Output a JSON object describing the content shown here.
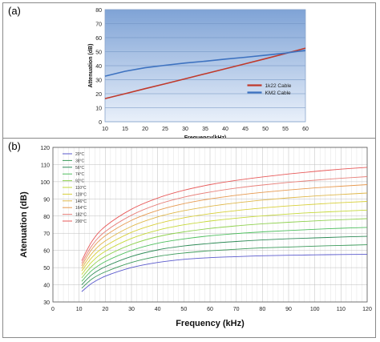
{
  "charts": [
    {
      "panel_label": "(a)",
      "chart_data": {
        "type": "line",
        "xlabel": "Frequency(kHz)",
        "ylabel": "Attenuation (dB)",
        "xlim": [
          10,
          60
        ],
        "ylim": [
          0,
          80
        ],
        "x_ticks": [
          "10",
          "15",
          "20",
          "25",
          "30",
          "35",
          "40",
          "45",
          "50",
          "55",
          "60"
        ],
        "y_ticks": [
          "0",
          "10",
          "20",
          "30",
          "40",
          "50",
          "60",
          "70",
          "80"
        ],
        "grid": "horizontal",
        "legend_position": "center-right",
        "series": [
          {
            "name": "1k22 Cable",
            "color": "#c0392b",
            "x": [
              10,
              15,
              20,
              25,
              30,
              35,
              40,
              45,
              50,
              55,
              60
            ],
            "y": [
              16.5,
              20.0,
              23.6,
              27.1,
              30.6,
              34.2,
              37.8,
              41.4,
              45.0,
              48.6,
              52.5
            ]
          },
          {
            "name": "KM2 Cable",
            "color": "#3d72c0",
            "x": [
              10,
              15,
              20,
              25,
              30,
              35,
              40,
              45,
              50,
              55,
              60
            ],
            "y": [
              32.5,
              36.0,
              38.5,
              40.3,
              41.9,
              43.2,
              44.7,
              46.0,
              47.5,
              49.0,
              51.0
            ]
          }
        ]
      }
    },
    {
      "panel_label": "(b)",
      "chart_data": {
        "type": "line",
        "xlabel": "Frequency (kHz)",
        "ylabel": "Atenuation (dB)",
        "xlim": [
          0,
          120
        ],
        "ylim": [
          30,
          120
        ],
        "x_ticks": [
          "0",
          "10",
          "20",
          "30",
          "40",
          "50",
          "60",
          "70",
          "80",
          "90",
          "100",
          "110",
          "120"
        ],
        "y_ticks": [
          "30",
          "40",
          "50",
          "60",
          "70",
          "80",
          "90",
          "100",
          "110",
          "120"
        ],
        "grid": "both",
        "legend_position": "top-left",
        "x": [
          11,
          15,
          20,
          30,
          40,
          50,
          60,
          70,
          80,
          90,
          100,
          110,
          120
        ],
        "series": [
          {
            "name": "20°C",
            "color": "#5a5acd",
            "y": [
              36,
              41,
              45,
              50,
              53,
              54.8,
              55.8,
              56.4,
              56.9,
              57.2,
              57.4,
              57.6,
              57.7
            ]
          },
          {
            "name": "38°C",
            "color": "#3b9a5a",
            "y": [
              38,
              43.5,
              47.5,
              53,
              56.5,
              58.5,
              59.8,
              60.7,
              61.5,
              62.0,
              62.5,
              62.9,
              63.3
            ]
          },
          {
            "name": "56°C",
            "color": "#2e8b57",
            "y": [
              40,
              46,
              50.5,
              56.5,
              60.3,
              62.6,
              64.1,
              65.2,
              66.1,
              66.8,
              67.3,
              67.8,
              68.2
            ]
          },
          {
            "name": "74°C",
            "color": "#4fbf5f",
            "y": [
              42,
              48.5,
              53.5,
              60,
              64.2,
              66.7,
              68.5,
              69.8,
              70.8,
              71.6,
              72.3,
              72.9,
              73.4
            ]
          },
          {
            "name": "92°C",
            "color": "#8fd14f",
            "y": [
              44,
              51,
              56.5,
              63.5,
              68,
              70.8,
              72.8,
              74.3,
              75.5,
              76.4,
              77.2,
              77.9,
              78.5
            ]
          },
          {
            "name": "110°C",
            "color": "#c6d93a",
            "y": [
              46,
              53.5,
              59.5,
              67,
              71.8,
              74.9,
              77.1,
              78.8,
              80.1,
              81.2,
              82.1,
              82.8,
              83.5
            ]
          },
          {
            "name": "128°C",
            "color": "#d8d03a",
            "y": [
              48,
              56,
              62.5,
              70.5,
              75.6,
              79,
              81.4,
              83.2,
              84.7,
              85.9,
              86.9,
              87.8,
              88.5
            ]
          },
          {
            "name": "146°C",
            "color": "#e0b84a",
            "y": [
              49.5,
              58.5,
              65.5,
              74,
              79.5,
              83.1,
              85.7,
              87.7,
              89.3,
              90.6,
              91.7,
              92.6,
              93.4
            ]
          },
          {
            "name": "164°C",
            "color": "#e79a50",
            "y": [
              51,
              61,
              68.5,
              77.5,
              83.3,
              87.2,
              90,
              92.1,
              93.8,
              95.2,
              96.4,
              97.4,
              98.3
            ]
          },
          {
            "name": "182°C",
            "color": "#e8807a",
            "y": [
              52.5,
              63,
              71,
              80.5,
              86.8,
              91,
              94,
              96.3,
              98.1,
              99.6,
              100.9,
              102,
              103
            ]
          },
          {
            "name": "200°C",
            "color": "#e85a5a",
            "y": [
              54,
              65.5,
              74,
              84,
              90.5,
              95,
              98.3,
              100.8,
              102.8,
              104.5,
              106,
              107.3,
              108.4
            ]
          }
        ]
      }
    }
  ]
}
